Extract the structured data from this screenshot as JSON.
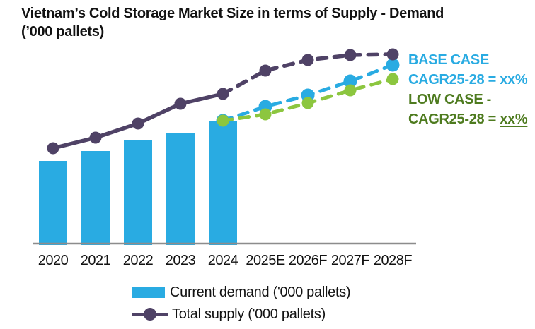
{
  "title": {
    "line1": "Vietnam’s Cold Storage Market Size in terms of Supply - Demand",
    "line2": "(’000 pallets)"
  },
  "annotations": {
    "base_case": {
      "label": "BASE CASE",
      "cagr_prefix": "CAGR25-28 = ",
      "cagr_value": "xx%",
      "color": "#29ABE2"
    },
    "low_case": {
      "label": "LOW CASE -",
      "cagr_prefix": "CAGR25-28 = ",
      "cagr_value": "xx%",
      "color": "#4E7B1F"
    }
  },
  "legend": [
    {
      "swatch": "bar-swatch",
      "label": "Current demand ('000 pallets)",
      "color": "#29ABE2"
    },
    {
      "swatch": "line-dot-swatch",
      "label": "Total supply ('000 pallets)",
      "color": "#4F4266"
    }
  ],
  "colors": {
    "demand_bar": "#29ABE2",
    "supply_line": "#4F4266",
    "base_case_line": "#29ABE2",
    "low_case_line": "#8CC63F",
    "axis": "#8C8C8C",
    "text": "#121212"
  },
  "chart_data": {
    "type": "combo",
    "title": "Vietnam’s Cold Storage Market Size in terms of Supply - Demand (’000 pallets)",
    "units_note": "'000 pallets; no numeric axis is shown in the figure, values below are relative magnitudes estimated from pixel heights above the baseline",
    "categories": [
      "2020",
      "2021",
      "2022",
      "2023",
      "2024",
      "2025E",
      "2026F",
      "2027F",
      "2028F"
    ],
    "x_axis_visible": true,
    "y_axis_visible": false,
    "gridlines": false,
    "legend_position": "bottom",
    "series": [
      {
        "name": "Current demand ('000 pallets)",
        "type": "bar",
        "color": "#29ABE2",
        "values": [
          117,
          131,
          146,
          157,
          173,
          null,
          null,
          null,
          null
        ]
      },
      {
        "name": "Total supply ('000 pallets)",
        "type": "line",
        "style": "solid-then-dashed",
        "dashed_from_index": 4,
        "color": "#4F4266",
        "values": [
          135,
          150,
          170,
          198,
          212,
          245,
          260,
          267,
          268
        ]
      },
      {
        "name": "Base case supply forecast",
        "type": "line",
        "style": "dashed",
        "color": "#29ABE2",
        "values": [
          null,
          null,
          null,
          null,
          174,
          194,
          210,
          230,
          253
        ]
      },
      {
        "name": "Low case supply forecast",
        "type": "line",
        "style": "dashed",
        "color": "#8CC63F",
        "values": [
          null,
          null,
          null,
          null,
          174,
          183,
          199,
          217,
          233
        ]
      }
    ]
  }
}
